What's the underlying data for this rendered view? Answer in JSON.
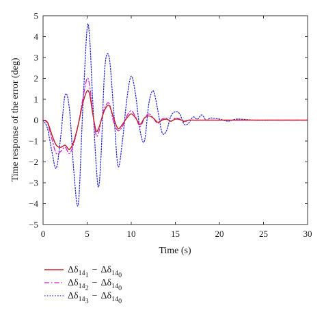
{
  "chart_data": {
    "type": "line",
    "title": "",
    "xlabel": "Time (s)",
    "ylabel": "Time response of the error (deg)",
    "xlim": [
      0,
      30
    ],
    "ylim": [
      -5,
      5
    ],
    "xticks": [
      0,
      5,
      10,
      15,
      20,
      25,
      30
    ],
    "yticks": [
      -5,
      -4,
      -3,
      -2,
      -1,
      0,
      1,
      2,
      3,
      4,
      5
    ],
    "grid": false,
    "legend_position": "bottom-left, below plot",
    "series": [
      {
        "legend": {
          "a": "Δδ",
          "a_sub": "14",
          "a_subsub": "1",
          "op": "−",
          "b": "Δδ",
          "b_sub": "14",
          "b_subsub": "0"
        },
        "color": "#c0262d",
        "style": "solid",
        "x": [
          0,
          0.5,
          1.0,
          1.5,
          2.0,
          2.5,
          3.0,
          3.5,
          4.0,
          4.5,
          5.0,
          5.3,
          5.6,
          6.0,
          6.3,
          6.6,
          7.0,
          7.5,
          8.0,
          8.5,
          9.0,
          9.5,
          10.0,
          10.5,
          11.0,
          11.5,
          12.0,
          12.5,
          13.0,
          13.5,
          14.0,
          14.5,
          15.0,
          15.5,
          16.0,
          16.5,
          17.0,
          18.0,
          19.0,
          20.0,
          22.0,
          24.0,
          26.0,
          28.0,
          30.0
        ],
        "y": [
          0,
          -0.1,
          -0.7,
          -1.2,
          -1.3,
          -1.2,
          -1.4,
          -1.0,
          -0.2,
          0.8,
          1.4,
          1.2,
          0.4,
          -0.5,
          -0.4,
          0.0,
          0.5,
          0.7,
          0.1,
          -0.4,
          -0.2,
          0.1,
          0.3,
          0.1,
          -0.2,
          0.1,
          0.2,
          0.1,
          -0.1,
          0.0,
          0.05,
          -0.05,
          0.05,
          0.03,
          -0.05,
          0.0,
          0.0,
          0.0,
          0.0,
          0.0,
          0.0,
          0.0,
          0.0,
          0.0,
          0.0
        ]
      },
      {
        "legend": {
          "a": "Δδ",
          "a_sub": "14",
          "a_subsub": "2",
          "op": "−",
          "b": "Δδ",
          "b_sub": "14",
          "b_subsub": "0"
        },
        "color": "#d71fd0",
        "style": "dashdot",
        "x": [
          0,
          0.5,
          1.0,
          1.5,
          2.0,
          2.5,
          3.0,
          3.5,
          4.0,
          4.5,
          5.0,
          5.3,
          5.6,
          6.0,
          6.3,
          6.6,
          7.0,
          7.5,
          8.0,
          8.5,
          9.0,
          9.5,
          10.0,
          10.5,
          11.0,
          11.5,
          12.0,
          12.5,
          13.0,
          13.5,
          14.0,
          14.5,
          15.0,
          15.5,
          16.0,
          16.5,
          17.0,
          18.0,
          19.0,
          20.0,
          22.0,
          24.0,
          26.0,
          28.0,
          30.0
        ],
        "y": [
          0,
          -0.15,
          -0.9,
          -1.6,
          -1.5,
          -1.3,
          -1.6,
          -1.1,
          -0.2,
          1.0,
          2.0,
          1.6,
          0.5,
          -0.7,
          -0.6,
          0.0,
          0.6,
          0.8,
          -0.1,
          -0.5,
          -0.3,
          0.2,
          0.45,
          0.15,
          -0.3,
          0.1,
          0.3,
          0.1,
          -0.15,
          0.05,
          0.1,
          -0.05,
          0.1,
          0.05,
          -0.08,
          0.0,
          0.0,
          0.0,
          0.0,
          0.0,
          0.0,
          0.0,
          0.0,
          0.0,
          0.0
        ]
      },
      {
        "legend": {
          "a": "Δδ",
          "a_sub": "14",
          "a_subsub": "3",
          "op": "−",
          "b": "Δδ",
          "b_sub": "14",
          "b_subsub": "0"
        },
        "color": "#2b2bd6",
        "style": "dotted",
        "x": [
          0,
          0.5,
          1.0,
          1.5,
          2.0,
          2.5,
          3.0,
          3.5,
          4.0,
          4.5,
          5.0,
          5.3,
          5.6,
          6.0,
          6.3,
          6.6,
          7.0,
          7.5,
          8.0,
          8.5,
          9.0,
          9.5,
          10.0,
          10.5,
          11.0,
          11.5,
          12.0,
          12.5,
          13.0,
          13.5,
          14.0,
          14.5,
          15.0,
          15.5,
          16.0,
          16.5,
          17.0,
          17.5,
          18.0,
          18.5,
          19.0,
          20.0,
          21.0,
          22.0,
          24.0,
          26.0,
          28.0,
          30.0
        ],
        "y": [
          0,
          -0.4,
          -1.5,
          -2.3,
          -0.8,
          1.2,
          0.5,
          -2.5,
          -4.0,
          0.5,
          4.4,
          3.8,
          1.2,
          -2.0,
          -3.2,
          -1.5,
          2.5,
          3.0,
          0.5,
          -2.2,
          -1.0,
          1.0,
          2.1,
          1.2,
          -0.5,
          -1.0,
          0.8,
          1.4,
          0.5,
          -0.6,
          -0.5,
          0.2,
          0.4,
          0.3,
          -0.2,
          -0.15,
          0.15,
          0.05,
          0.25,
          0.0,
          0.1,
          0.05,
          -0.05,
          0.05,
          0.0,
          0.0,
          0.0,
          0.0
        ]
      }
    ]
  }
}
